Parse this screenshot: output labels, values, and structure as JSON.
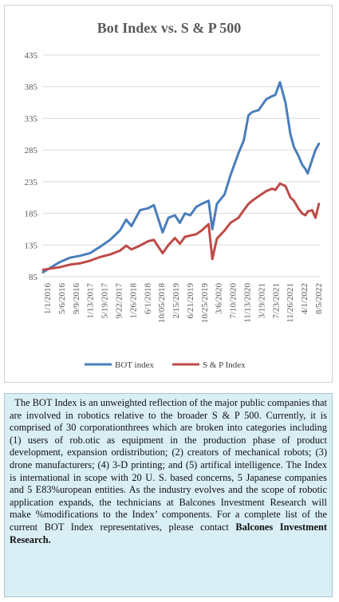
{
  "chart_data": {
    "type": "line",
    "title": "Bot Index vs. S & P 500",
    "ylim": [
      85,
      435
    ],
    "yticks": [
      85,
      135,
      185,
      235,
      285,
      335,
      385,
      435
    ],
    "grid": true,
    "legend_position": "bottom",
    "x_tick_labels": [
      "1/1/2016",
      "5/6/2016",
      "9/9/2016",
      "1/13/2017",
      "5/19/2017",
      "9/22/2017",
      "1/26/2018",
      "6/1/2018",
      "10/05/2018",
      "2/15/2019",
      "6/21/2019",
      "10/25/2019",
      "3/6/2020",
      "7/10/2020",
      "11/13/2020",
      "3/19/2021",
      "7/23/2021",
      "11/26/2021",
      "4/1/2022",
      "8/5/2022"
    ],
    "x": [
      "2016-01-01",
      "2016-03-15",
      "2016-06-01",
      "2016-09-01",
      "2016-12-01",
      "2017-03-01",
      "2017-06-01",
      "2017-09-01",
      "2017-12-01",
      "2018-01-26",
      "2018-03-15",
      "2018-06-01",
      "2018-08-15",
      "2018-10-05",
      "2018-12-24",
      "2019-02-15",
      "2019-04-15",
      "2019-05-30",
      "2019-07-15",
      "2019-09-01",
      "2019-10-25",
      "2019-12-15",
      "2020-02-15",
      "2020-03-20",
      "2020-05-01",
      "2020-07-10",
      "2020-09-01",
      "2020-11-13",
      "2020-12-31",
      "2021-02-12",
      "2021-03-19",
      "2021-05-15",
      "2021-07-23",
      "2021-09-15",
      "2021-10-15",
      "2021-11-26",
      "2022-01-15",
      "2022-03-01",
      "2022-04-01",
      "2022-05-15",
      "2022-06-15",
      "2022-07-15",
      "2022-08-05",
      "2022-09-15",
      "2022-10-15",
      "2022-11-15"
    ],
    "series": [
      {
        "name": "BOT index",
        "color": "#4a7ebb",
        "values": [
          92,
          100,
          108,
          115,
          118,
          122,
          132,
          143,
          158,
          175,
          165,
          190,
          193,
          198,
          155,
          178,
          182,
          170,
          185,
          182,
          195,
          200,
          205,
          160,
          200,
          215,
          245,
          280,
          300,
          340,
          345,
          348,
          365,
          370,
          372,
          392,
          360,
          310,
          290,
          275,
          262,
          255,
          248,
          270,
          285,
          295
        ]
      },
      {
        "name": "S & P Index",
        "color": "#be4b48",
        "values": [
          96,
          98,
          100,
          104,
          106,
          110,
          116,
          120,
          126,
          134,
          128,
          134,
          141,
          143,
          122,
          135,
          146,
          137,
          148,
          150,
          152,
          158,
          168,
          113,
          145,
          158,
          170,
          178,
          190,
          200,
          205,
          212,
          220,
          224,
          222,
          232,
          228,
          210,
          205,
          192,
          185,
          182,
          188,
          190,
          178,
          200
        ]
      }
    ]
  },
  "description": {
    "text": "The BOT Index is an unweighted reflection of the major public companies that are involved in robotics relative to the broader S & P 500. Currently, it is comprised of 30 corporationthrees which are broken into categories including (1) users of rob.otic as equipment in the production phase of product development, expansion ordistribution; (2) creators of mechanical robots; (3) drone manufacturers; (4) 3-D printing; and (5) artifical intelligence. The Index is international in scope with 20 U. S. based concerns, 5 Japanese companies and 5 E83%uropean entities. As the industry evolves and the scope of robotic application expands, the technicians at Balcones Investment Research will make %modifications to the Index’ components. For a  complete list of the current BOT Index representatives, please contact ",
    "bold_text": "Balcones Investment Research."
  }
}
